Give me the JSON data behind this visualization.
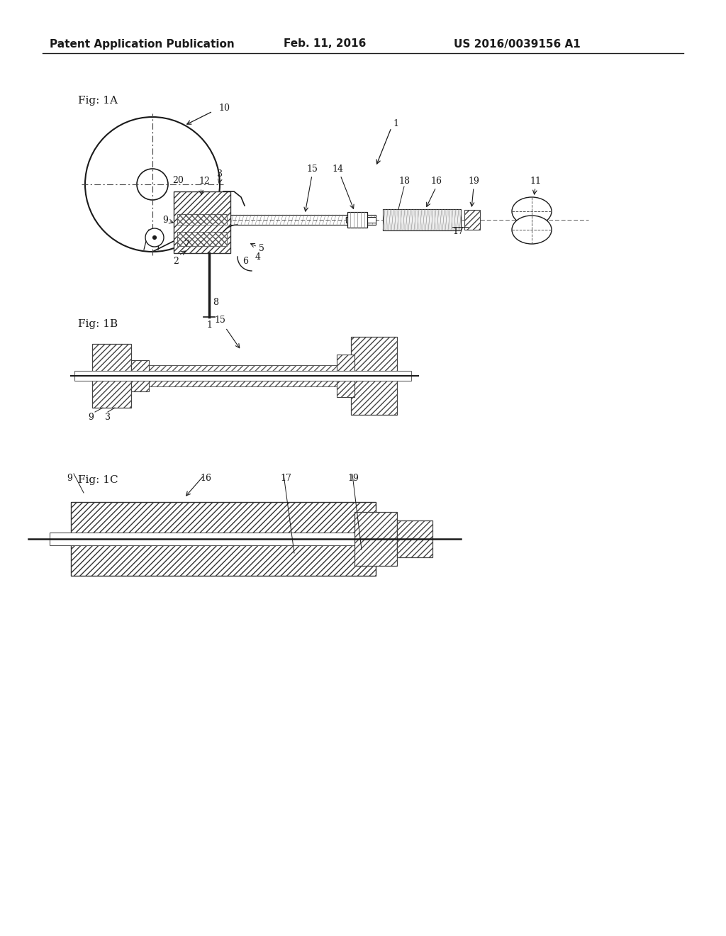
{
  "header_left": "Patent Application Publication",
  "header_center": "Feb. 11, 2016",
  "header_right": "US 2016/0039156 A1",
  "fig1a_label": "Fig: 1A",
  "fig1b_label": "Fig: 1B",
  "fig1c_label": "Fig: 1C",
  "bg_color": "#ffffff",
  "line_color": "#1a1a1a",
  "hatch_color": "#555555",
  "header_fontsize": 11,
  "label_fontsize": 9
}
